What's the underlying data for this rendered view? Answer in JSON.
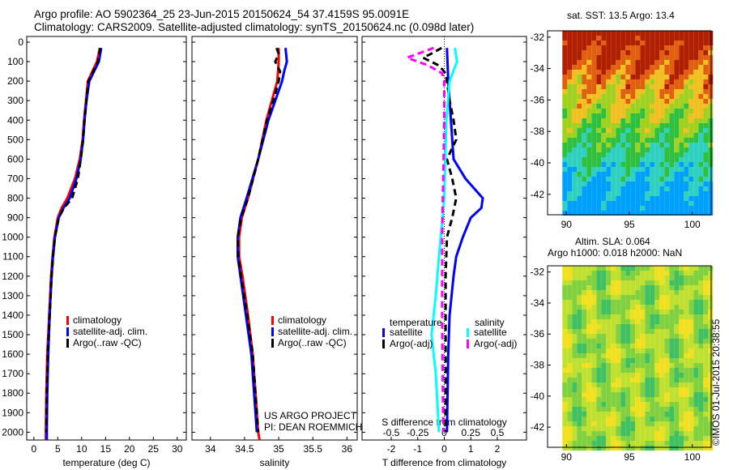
{
  "title": {
    "line1": "Argo profile: AO 5902364_25 23-Jun-2015 20150624_54 37.4159S 95.0091E",
    "line2": "Climatology: CARS2009. Satellite-adjusted climatology: synTS_20150624.nc (0.098d later)"
  },
  "credit": {
    "project": "US ARGO PROJECT",
    "pi": "PI: DEAN ROEMMICH",
    "stamp": "©IMOS 01-Jul-2015 20:38:55"
  },
  "colors": {
    "climatology": "#ff0000",
    "satellite": "#0000ff",
    "argo": "#000000",
    "sal_sat": "#00ffff",
    "sal_argo": "#ff00ff"
  },
  "chart_data": [
    {
      "type": "line",
      "xlabel": "temperature (deg C)",
      "ylabel": "",
      "xlim": [
        -1.5,
        31.9
      ],
      "ylim": [
        2040,
        -29
      ],
      "xticks": [
        0,
        5,
        10,
        15,
        20,
        25,
        30
      ],
      "yticks": [
        0,
        100,
        200,
        300,
        400,
        500,
        600,
        700,
        800,
        900,
        1000,
        1100,
        1200,
        1300,
        1400,
        1500,
        1600,
        1700,
        1800,
        1900,
        2000
      ],
      "legend": [
        "climatology",
        "satellite-adj. clim.",
        "Argo(..raw -QC)"
      ],
      "series": [
        {
          "name": "climatology",
          "color": "#ff0000",
          "depth": [
            30,
            100,
            200,
            300,
            400,
            500,
            600,
            700,
            800,
            850,
            900,
            1000,
            1100,
            1200,
            1400,
            1600,
            1800,
            2000,
            2040
          ],
          "value": [
            13.8,
            13.2,
            11.3,
            10.9,
            10.5,
            10.2,
            9.6,
            8.6,
            7.0,
            5.8,
            5.0,
            4.3,
            3.9,
            3.6,
            3.2,
            2.8,
            2.6,
            2.5,
            2.5
          ]
        },
        {
          "name": "satellite-adj. clim.",
          "color": "#0000ff",
          "depth": [
            30,
            100,
            200,
            300,
            400,
            500,
            600,
            700,
            800,
            850,
            900,
            1000,
            1100,
            1200,
            1400,
            1600,
            1800,
            2000,
            2040
          ],
          "value": [
            14.1,
            13.6,
            11.6,
            11.0,
            10.6,
            10.3,
            9.8,
            8.9,
            7.5,
            6.2,
            5.2,
            4.4,
            4.0,
            3.7,
            3.3,
            3.0,
            2.8,
            2.7,
            2.7
          ]
        },
        {
          "name": "Argo(..raw -QC)",
          "color": "#000000",
          "dashed": true,
          "depth": [
            30,
            100,
            200,
            300,
            400,
            500,
            600,
            700,
            800,
            850,
            900,
            1000,
            1100,
            1200,
            1400,
            1600,
            1800,
            2000
          ],
          "value": [
            13.9,
            13.4,
            11.4,
            11.0,
            10.6,
            10.3,
            9.8,
            9.2,
            8.0,
            6.3,
            5.2,
            4.4,
            4.0,
            3.7,
            3.3,
            2.9,
            2.7,
            2.6
          ]
        }
      ]
    },
    {
      "type": "line",
      "xlabel": "salinity",
      "xlim": [
        33.73,
        36.15
      ],
      "ylim": [
        2040,
        -29
      ],
      "xticks": [
        34,
        34.5,
        35,
        35.5,
        36
      ],
      "legend": [
        "climatology",
        "satellite-adj. clim.",
        "Argo(..raw -QC)"
      ],
      "series": [
        {
          "name": "climatology",
          "color": "#ff0000",
          "depth": [
            30,
            100,
            200,
            300,
            400,
            600,
            800,
            900,
            1000,
            1100,
            1200,
            1400,
            1600,
            1800,
            2000,
            2040
          ],
          "value": [
            35.0,
            35.0,
            34.98,
            34.9,
            34.82,
            34.7,
            34.55,
            34.46,
            34.42,
            34.42,
            34.47,
            34.55,
            34.62,
            34.66,
            34.7,
            34.72
          ]
        },
        {
          "name": "satellite-adj. clim.",
          "color": "#0000ff",
          "depth": [
            30,
            100,
            150,
            200,
            300,
            400,
            600,
            800,
            900,
            1000,
            1100,
            1200,
            1400,
            1600,
            1800,
            2000
          ],
          "value": [
            35.1,
            35.12,
            35.08,
            35.05,
            34.95,
            34.85,
            34.7,
            34.53,
            34.44,
            34.4,
            34.4,
            34.44,
            34.52,
            34.6,
            34.64,
            34.68
          ]
        },
        {
          "name": "Argo(..raw -QC)",
          "color": "#000000",
          "dashed": true,
          "depth": [
            30,
            60,
            100,
            150,
            200,
            300,
            400,
            600,
            800,
            900,
            1000,
            1100,
            1200,
            1400,
            1600,
            1800,
            2000
          ],
          "value": [
            34.97,
            35.0,
            34.95,
            35.02,
            35.0,
            34.92,
            34.83,
            34.7,
            34.55,
            34.45,
            34.4,
            34.41,
            34.45,
            34.54,
            34.62,
            34.66,
            34.7
          ]
        }
      ]
    },
    {
      "type": "line",
      "xlabel": "T difference from climatology",
      "xlabel2": "S difference from climatology",
      "xlim": [
        -3.1,
        3.1
      ],
      "ylim": [
        2040,
        -29
      ],
      "xticks": [
        -2,
        -1,
        0,
        1,
        2
      ],
      "xticks2": [
        -0.5,
        -0.25,
        0,
        0.25,
        0.5
      ],
      "legend_headers": [
        "temperature",
        "salinity"
      ],
      "legend": [
        "satellite",
        "Argo(-adj)",
        "satellite",
        "Argo(-adj)"
      ],
      "series": [
        {
          "name": "T satellite",
          "color": "#0000ff",
          "axis": "T",
          "depth": [
            30,
            200,
            400,
            600,
            700,
            800,
            850,
            900,
            1000,
            1100,
            1200,
            1400,
            1600,
            2000
          ],
          "value": [
            0.1,
            0.15,
            0.25,
            0.35,
            0.8,
            1.45,
            1.4,
            1.0,
            0.7,
            0.45,
            0.35,
            0.2,
            0.15,
            0.1
          ]
        },
        {
          "name": "T Argo(-adj)",
          "color": "#000000",
          "dashed": true,
          "axis": "T",
          "depth": [
            30,
            60,
            80,
            120,
            160,
            200,
            300,
            400,
            500,
            600,
            700,
            800,
            900,
            1000,
            1200,
            1600,
            2000
          ],
          "value": [
            -0.1,
            -0.5,
            -0.8,
            -0.2,
            0.05,
            0.1,
            0.2,
            0.35,
            0.45,
            0.1,
            0.3,
            0.45,
            0.3,
            0.1,
            0.05,
            0.05,
            0.05
          ]
        },
        {
          "name": "S satellite",
          "color": "#00ffff",
          "axis": "S",
          "depth": [
            30,
            100,
            200,
            400,
            800,
            1100,
            1300,
            1500,
            1700,
            2000
          ],
          "value": [
            0.1,
            0.12,
            0.05,
            0.02,
            0.0,
            -0.05,
            -0.08,
            -0.12,
            -0.08,
            -0.05
          ]
        },
        {
          "name": "S Argo(-adj)",
          "color": "#ff00ff",
          "dashed": true,
          "axis": "S",
          "depth": [
            30,
            80,
            120,
            160,
            200,
            400,
            700,
            1000,
            1400,
            2000
          ],
          "value": [
            -0.1,
            -0.35,
            -0.15,
            -0.02,
            0.0,
            0.0,
            -0.01,
            -0.02,
            -0.02,
            -0.01
          ]
        }
      ]
    },
    {
      "type": "heatmap",
      "title": "sat. SST: 13.5 Argo: 13.4",
      "xlim": [
        88.5,
        101.5
      ],
      "ylim": [
        -43.3,
        -31.6
      ],
      "xticks": [
        90,
        95,
        100
      ],
      "yticks": [
        -32,
        -34,
        -36,
        -38,
        -40,
        -42
      ]
    },
    {
      "type": "heatmap",
      "title": "Altim. SLA: 0.064",
      "title2": "Argo h1000: 0.018 h2000: NaN",
      "xlim": [
        88.5,
        101.5
      ],
      "ylim": [
        -43.3,
        -31.6
      ],
      "xticks": [
        90,
        95,
        100
      ],
      "yticks": [
        -32,
        -34,
        -36,
        -38,
        -40,
        -42
      ]
    }
  ]
}
